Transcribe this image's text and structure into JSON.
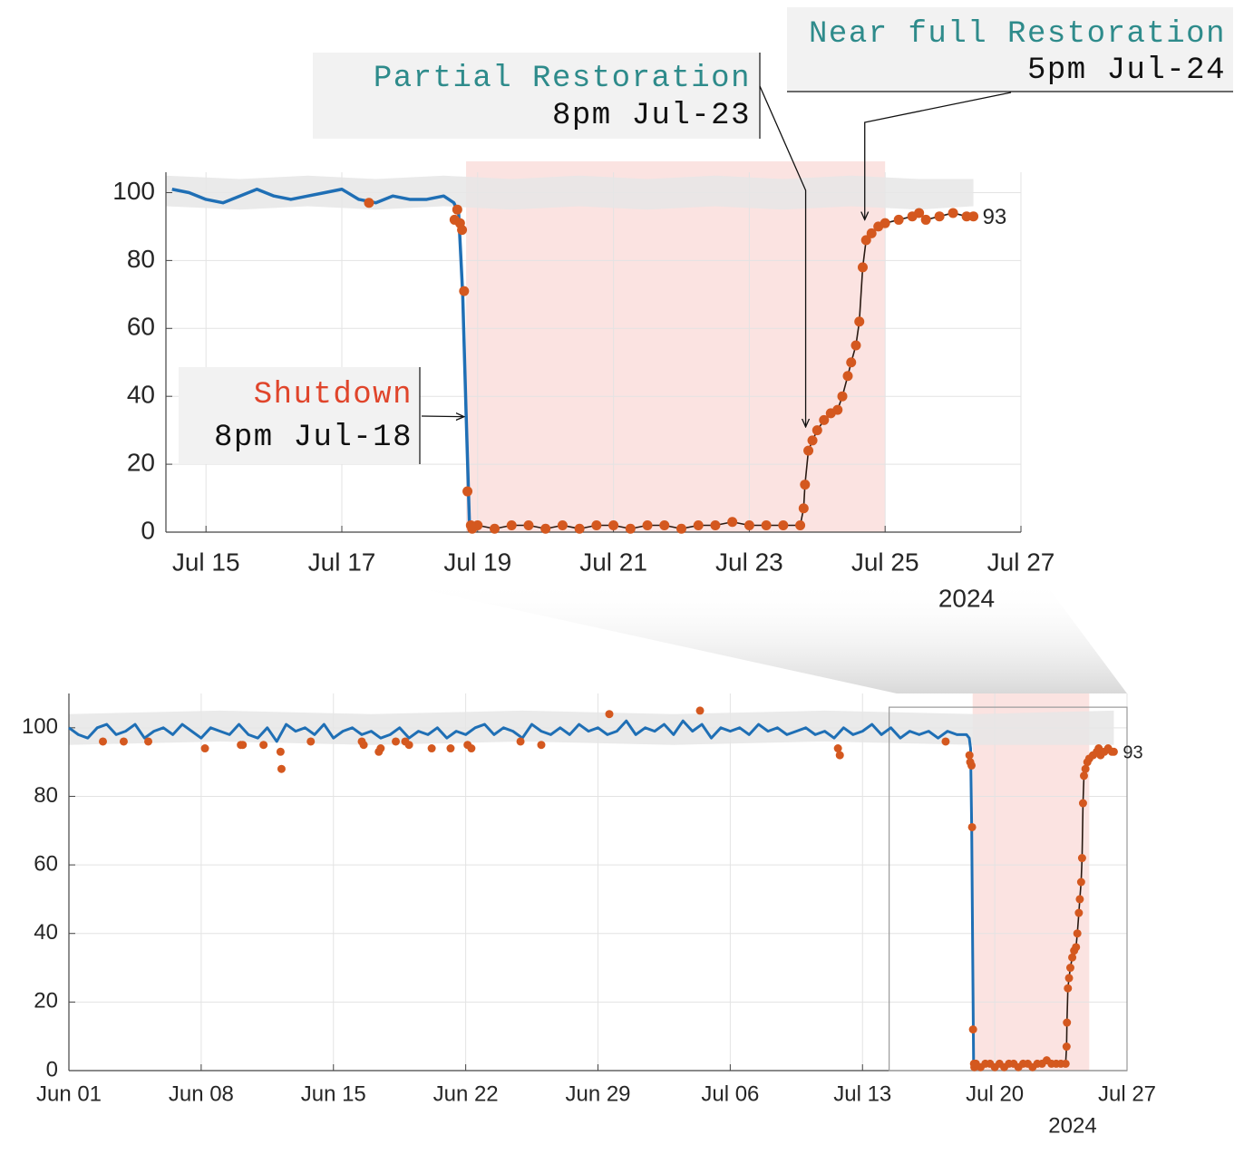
{
  "chart_data": [
    {
      "type": "line",
      "xlim": [
        43.41,
        56
      ],
      "ylim": [
        0,
        106
      ],
      "grid": true,
      "xticks": [
        {
          "value": 44,
          "label": "Jul 15"
        },
        {
          "value": 46,
          "label": "Jul 17"
        },
        {
          "value": 48,
          "label": "Jul 19"
        },
        {
          "value": 50,
          "label": "Jul 21"
        },
        {
          "value": 52,
          "label": "Jul 23"
        },
        {
          "value": 54,
          "label": "Jul 25"
        },
        {
          "value": 56,
          "label": "Jul 27"
        }
      ],
      "yticks": [
        0,
        20,
        40,
        60,
        80,
        100
      ],
      "x_sublabel": "2024",
      "highlight": [
        47.83,
        54.0
      ],
      "highlight_color": "#fbe3e1",
      "band": {
        "color": "#e6e6e6",
        "x": [
          43.41,
          44.5,
          45.5,
          46.5,
          47.5,
          48.5,
          49.5,
          50.5,
          51.5,
          52.5,
          53.5,
          54.5,
          55.3
        ],
        "upper": [
          105,
          104,
          105,
          104,
          105,
          104,
          105,
          104,
          105,
          104,
          105,
          104,
          104
        ],
        "lower": [
          96,
          95,
          96,
          95,
          96,
          95,
          96,
          95,
          96,
          95,
          96,
          95,
          96
        ]
      },
      "series": [
        {
          "type": "line",
          "color": "#1f6fb5",
          "x": [
            43.5,
            43.75,
            44,
            44.25,
            44.5,
            44.75,
            45,
            45.25,
            45.5,
            45.75,
            46,
            46.25,
            46.5,
            46.75,
            47,
            47.25,
            47.5,
            47.65,
            47.72,
            47.78,
            47.83,
            47.88
          ],
          "values": [
            101,
            100,
            98,
            97,
            99,
            101,
            99,
            98,
            99,
            100,
            101,
            98,
            97,
            99,
            98,
            98,
            99,
            97,
            94,
            70,
            35,
            2
          ]
        },
        {
          "type": "line",
          "color": "#2a1a12",
          "marker_color": "#d4581f",
          "end_label": true,
          "x": [
            47.92,
            48,
            48.25,
            48.5,
            48.75,
            49,
            49.25,
            49.5,
            49.75,
            50,
            50.25,
            50.5,
            50.75,
            51,
            51.25,
            51.5,
            51.75,
            52,
            52.25,
            52.5,
            52.75,
            52.8,
            52.82,
            52.87,
            52.93,
            53,
            53.1,
            53.2,
            53.3,
            53.37,
            53.45,
            53.5,
            53.57,
            53.62,
            53.67,
            53.72,
            53.8,
            53.9,
            54,
            54.2,
            54.4,
            54.5,
            54.6,
            54.8,
            55,
            55.2,
            55.3
          ],
          "values": [
            1,
            2,
            1,
            2,
            2,
            1,
            2,
            1,
            2,
            2,
            1,
            2,
            2,
            1,
            2,
            2,
            3,
            2,
            2,
            2,
            2,
            7,
            14,
            24,
            27,
            30,
            33,
            35,
            36,
            40,
            46,
            50,
            55,
            62,
            78,
            86,
            88,
            90,
            91,
            92,
            93,
            94,
            92,
            93,
            94,
            93,
            93
          ]
        },
        {
          "type": "scatter",
          "color": "#d4581f",
          "x": [
            46.4,
            47.66,
            47.7,
            47.74,
            47.77,
            47.8,
            47.85,
            47.9
          ],
          "values": [
            97,
            92,
            95,
            91,
            89,
            71,
            12,
            2
          ]
        }
      ],
      "annotations": [
        {
          "lines": [
            "Shutdown",
            "8pm Jul-18"
          ],
          "color": "#e0452b",
          "x": 47.8,
          "y": 34
        },
        {
          "lines": [
            "Partial Restoration",
            "8pm Jul-23"
          ],
          "color": "#2e8b8b",
          "x": 52.83,
          "y": 31
        },
        {
          "lines": [
            "Near full Restoration",
            "5pm Jul-24"
          ],
          "color": "#2e8b8b",
          "x": 53.7,
          "y": 92
        }
      ]
    },
    {
      "type": "line",
      "xlim": [
        0,
        56
      ],
      "ylim": [
        0,
        110
      ],
      "grid": true,
      "xticks": [
        {
          "value": 0,
          "label": "Jun 01"
        },
        {
          "value": 7,
          "label": "Jun 08"
        },
        {
          "value": 14,
          "label": "Jun 15"
        },
        {
          "value": 21,
          "label": "Jun 22"
        },
        {
          "value": 28,
          "label": "Jun 29"
        },
        {
          "value": 35,
          "label": "Jul 06"
        },
        {
          "value": 42,
          "label": "Jul 13"
        },
        {
          "value": 49,
          "label": "Jul 20"
        },
        {
          "value": 56,
          "label": "Jul 27"
        }
      ],
      "yticks": [
        0,
        20,
        40,
        60,
        80,
        100
      ],
      "x_sublabel": "2024",
      "highlight": [
        47.83,
        54.0
      ],
      "highlight_color": "#fbe3e1",
      "band": {
        "color": "#e6e6e6",
        "x": [
          0,
          8,
          16,
          24,
          32,
          40,
          48,
          55.3
        ],
        "upper": [
          104,
          105,
          104,
          105,
          104,
          105,
          104,
          105
        ],
        "lower": [
          95,
          96,
          95,
          96,
          95,
          96,
          95,
          95
        ]
      },
      "series": [
        {
          "type": "line",
          "color": "#1f6fb5",
          "x": [
            0,
            0.5,
            1,
            1.5,
            2,
            2.5,
            3,
            3.5,
            4,
            4.5,
            5,
            5.5,
            6,
            6.5,
            7,
            7.5,
            8,
            8.5,
            9,
            9.5,
            10,
            10.5,
            11,
            11.5,
            12,
            12.5,
            13,
            13.5,
            14,
            14.5,
            15,
            15.5,
            16,
            16.5,
            17,
            17.5,
            18,
            18.5,
            19,
            19.5,
            20,
            20.5,
            21,
            21.5,
            22,
            22.5,
            23,
            23.5,
            24,
            24.5,
            25,
            25.5,
            26,
            26.5,
            27,
            27.5,
            28,
            28.5,
            29,
            29.5,
            30,
            30.5,
            31,
            31.5,
            32,
            32.5,
            33,
            33.5,
            34,
            34.5,
            35,
            35.5,
            36,
            36.5,
            37,
            37.5,
            38,
            38.5,
            39,
            39.5,
            40,
            40.5,
            41,
            41.5,
            42,
            42.5,
            43,
            43.5,
            44,
            44.5,
            45,
            45.5,
            46,
            46.5,
            47,
            47.5,
            47.65,
            47.72,
            47.78,
            47.83,
            47.88
          ],
          "values": [
            100,
            98,
            97,
            100,
            101,
            98,
            99,
            101,
            97,
            99,
            100,
            98,
            101,
            99,
            97,
            100,
            99,
            98,
            101,
            98,
            97,
            100,
            96,
            101,
            99,
            100,
            98,
            101,
            97,
            99,
            100,
            98,
            99,
            97,
            98,
            100,
            97,
            99,
            98,
            100,
            97,
            99,
            98,
            100,
            101,
            98,
            100,
            99,
            97,
            101,
            99,
            98,
            100,
            98,
            101,
            99,
            100,
            98,
            99,
            102,
            98,
            100,
            99,
            101,
            98,
            102,
            99,
            101,
            97,
            100,
            99,
            100,
            98,
            101,
            99,
            100,
            98,
            99,
            100,
            98,
            99,
            97,
            100,
            98,
            99,
            101,
            98,
            100,
            97,
            99,
            98,
            99,
            97,
            99,
            98,
            98,
            97,
            94,
            70,
            35,
            2
          ]
        },
        {
          "type": "line",
          "color": "#2a1a12",
          "marker_color": "#d4581f",
          "end_label": true,
          "x": [
            47.92,
            48,
            48.25,
            48.5,
            48.75,
            49,
            49.25,
            49.5,
            49.75,
            50,
            50.25,
            50.5,
            50.75,
            51,
            51.25,
            51.5,
            51.75,
            52,
            52.25,
            52.5,
            52.75,
            52.8,
            52.82,
            52.87,
            52.93,
            53,
            53.1,
            53.2,
            53.3,
            53.37,
            53.45,
            53.5,
            53.57,
            53.62,
            53.67,
            53.72,
            53.8,
            53.9,
            54,
            54.2,
            54.4,
            54.5,
            54.6,
            54.8,
            55,
            55.2,
            55.3
          ],
          "values": [
            1,
            2,
            1,
            2,
            2,
            1,
            2,
            1,
            2,
            2,
            1,
            2,
            2,
            1,
            2,
            2,
            3,
            2,
            2,
            2,
            2,
            7,
            14,
            24,
            27,
            30,
            33,
            35,
            36,
            40,
            46,
            50,
            55,
            62,
            78,
            86,
            88,
            90,
            91,
            92,
            93,
            94,
            92,
            93,
            94,
            93,
            93
          ]
        },
        {
          "type": "scatter",
          "color": "#d4581f",
          "x": [
            1.8,
            2.9,
            4.2,
            7.2,
            9.1,
            9.2,
            10.3,
            11.2,
            11.25,
            12.8,
            15.5,
            15.6,
            16.4,
            16.5,
            17.3,
            17.8,
            18.0,
            19.2,
            20.2,
            21.1,
            21.3,
            23.9,
            25.0,
            28.6,
            33.4,
            40.7,
            40.8,
            46.4,
            47.66,
            47.7,
            47.77,
            47.8,
            47.85,
            47.9
          ],
          "values": [
            96,
            96,
            96,
            94,
            95,
            95,
            95,
            93,
            88,
            96,
            96,
            95,
            93,
            94,
            96,
            96,
            95,
            94,
            94,
            95,
            94,
            96,
            95,
            104,
            105,
            94,
            92,
            96,
            92,
            90,
            89,
            71,
            12,
            2
          ]
        }
      ]
    }
  ]
}
